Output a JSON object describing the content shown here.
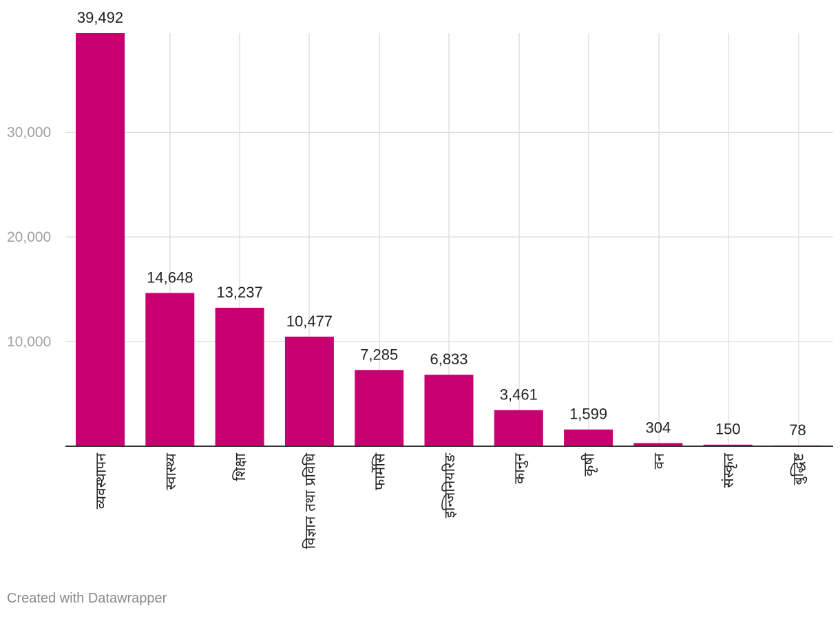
{
  "chart_data": {
    "type": "bar",
    "title": "",
    "xlabel": "",
    "ylabel": "",
    "categories": [
      "व्यवस्थापन",
      "स्वास्थ्य",
      "शिक्षा",
      "विज्ञान तथा प्रविधि",
      "फार्मेसि",
      "इन्जिनियरिङ",
      "कानुन",
      "कृषी",
      "वन",
      "संस्कृत",
      "बुद्धिष्ट"
    ],
    "values": [
      39492,
      14648,
      13237,
      10477,
      7285,
      6833,
      3461,
      1599,
      304,
      150,
      78
    ],
    "value_labels": [
      "39,492",
      "14,648",
      "13,237",
      "10,477",
      "7,285",
      "6,833",
      "3,461",
      "1,599",
      "304",
      "150",
      "78"
    ],
    "yticks": [
      10000,
      20000,
      30000
    ],
    "ytick_labels": [
      "10,000",
      "20,000",
      "30,000"
    ],
    "ylim": [
      0,
      39492
    ],
    "grid": true,
    "colors": {
      "bar": "#c8006f",
      "grid": "#e0e0e0",
      "axis": "#333333",
      "tick_label": "#a0a0a0",
      "value_label": "#222222",
      "category_label": "#222222"
    }
  },
  "footer": {
    "credit": "Created with Datawrapper"
  }
}
